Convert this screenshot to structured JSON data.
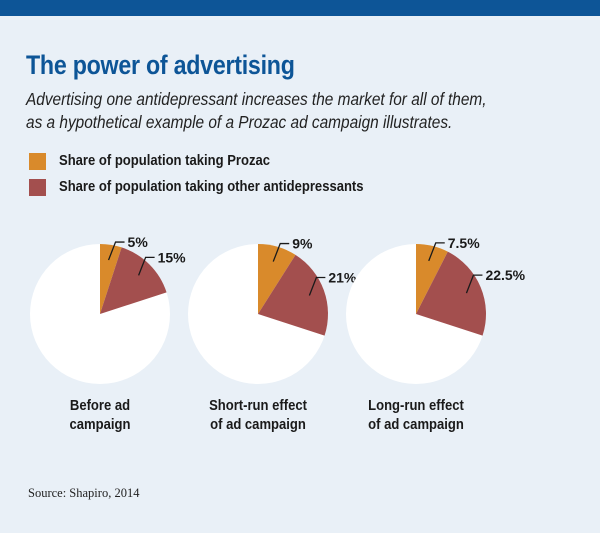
{
  "title": "The power of advertising",
  "subtitle_lines": [
    "Advertising one antidepressant increases the market for all of them,",
    "as a hypothetical example of a Prozac ad campaign illustrates."
  ],
  "colors": {
    "header_bar": "#0d5597",
    "background": "#e9f0f7",
    "prozac": "#d98a2b",
    "other": "#a34f4e",
    "remainder": "#ffffff"
  },
  "source": "Source: Shapiro, 2014",
  "chart_data": {
    "type": "pie",
    "title": "The power of advertising",
    "legend": [
      {
        "name": "Share of population taking Prozac",
        "color": "#d98a2b"
      },
      {
        "name": "Share of population taking other antidepressants",
        "color": "#a34f4e"
      }
    ],
    "legend_position": "top-left",
    "pies": [
      {
        "category": "Before ad campaign",
        "category_lines": [
          "Before ad",
          "campaign"
        ],
        "values": [
          5,
          15
        ],
        "labels": [
          "5%",
          "15%"
        ]
      },
      {
        "category": "Short-run effect of ad campaign",
        "category_lines": [
          "Short-run effect",
          "of ad campaign"
        ],
        "values": [
          9,
          21
        ],
        "labels": [
          "9%",
          "21%"
        ]
      },
      {
        "category": "Long-run effect of ad campaign",
        "category_lines": [
          "Long-run effect",
          "of ad campaign"
        ],
        "values": [
          7.5,
          22.5
        ],
        "labels": [
          "7.5%",
          "22.5%"
        ]
      }
    ],
    "series": [
      {
        "name": "Share of population taking Prozac",
        "values": [
          5,
          9,
          7.5
        ]
      },
      {
        "name": "Share of population taking other antidepressants",
        "values": [
          15,
          21,
          22.5
        ]
      }
    ],
    "unit": "%"
  }
}
